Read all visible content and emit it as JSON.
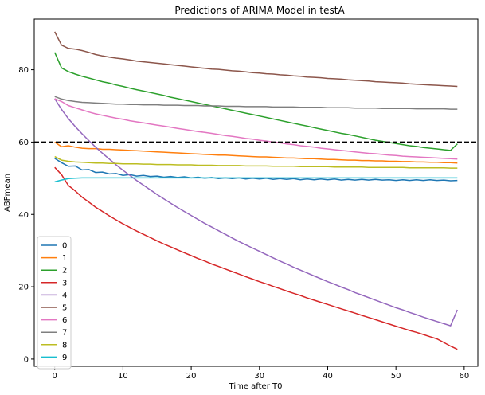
{
  "chart_data": {
    "type": "line",
    "title": "Predictions of ARIMA Model in testA",
    "xlabel": "Time after T0",
    "ylabel": "ABPmean",
    "xlim": [
      -3,
      62
    ],
    "ylim": [
      -2,
      94
    ],
    "xticks": [
      0,
      10,
      20,
      30,
      40,
      50,
      60
    ],
    "yticks": [
      0,
      20,
      40,
      60,
      80
    ],
    "grid": false,
    "legend_position": "lower left",
    "reference_line": {
      "y": 60,
      "style": "dashed",
      "color": "#000000"
    },
    "x": [
      0,
      1,
      2,
      3,
      4,
      5,
      6,
      7,
      8,
      9,
      10,
      11,
      12,
      13,
      14,
      15,
      16,
      17,
      18,
      19,
      20,
      21,
      22,
      23,
      24,
      25,
      26,
      27,
      28,
      29,
      30,
      31,
      32,
      33,
      34,
      35,
      36,
      37,
      38,
      39,
      40,
      41,
      42,
      43,
      44,
      45,
      46,
      47,
      48,
      49,
      50,
      51,
      52,
      53,
      54,
      55,
      56,
      57,
      58,
      59
    ],
    "series": [
      {
        "name": "0",
        "color": "#1f77b4",
        "values": [
          55.5,
          54.3,
          53.3,
          53.4,
          52.3,
          52.4,
          51.6,
          51.7,
          51.2,
          51.3,
          50.8,
          51.0,
          50.6,
          50.8,
          50.5,
          50.6,
          50.3,
          50.5,
          50.2,
          50.4,
          50.1,
          50.3,
          50.0,
          50.2,
          49.9,
          50.1,
          49.9,
          50.1,
          49.8,
          50.0,
          49.8,
          50.0,
          49.7,
          49.9,
          49.7,
          49.9,
          49.6,
          49.8,
          49.6,
          49.8,
          49.6,
          49.8,
          49.5,
          49.7,
          49.5,
          49.7,
          49.5,
          49.7,
          49.5,
          49.6,
          49.4,
          49.6,
          49.4,
          49.6,
          49.4,
          49.6,
          49.4,
          49.5,
          49.3,
          49.4
        ]
      },
      {
        "name": "1",
        "color": "#ff7f0e",
        "values": [
          60.0,
          58.7,
          59.0,
          58.6,
          58.3,
          58.2,
          58.2,
          58.0,
          58.0,
          57.9,
          57.8,
          57.7,
          57.6,
          57.5,
          57.4,
          57.3,
          57.2,
          57.1,
          57.0,
          56.9,
          56.8,
          56.7,
          56.6,
          56.5,
          56.4,
          56.4,
          56.3,
          56.2,
          56.1,
          56.0,
          55.9,
          55.9,
          55.8,
          55.7,
          55.6,
          55.6,
          55.5,
          55.4,
          55.4,
          55.3,
          55.2,
          55.2,
          55.1,
          55.0,
          55.0,
          54.9,
          54.9,
          54.8,
          54.8,
          54.7,
          54.7,
          54.6,
          54.6,
          54.5,
          54.5,
          54.4,
          54.4,
          54.3,
          54.3,
          54.2
        ]
      },
      {
        "name": "2",
        "color": "#2ca02c",
        "values": [
          84.8,
          80.5,
          79.5,
          78.8,
          78.2,
          77.7,
          77.2,
          76.7,
          76.3,
          75.8,
          75.4,
          74.9,
          74.5,
          74.1,
          73.7,
          73.3,
          72.9,
          72.4,
          72.0,
          71.6,
          71.2,
          70.8,
          70.4,
          70.0,
          69.6,
          69.2,
          68.8,
          68.4,
          68.0,
          67.6,
          67.2,
          66.8,
          66.4,
          66.0,
          65.6,
          65.2,
          64.8,
          64.4,
          64.0,
          63.6,
          63.2,
          62.8,
          62.4,
          62.1,
          61.7,
          61.3,
          60.9,
          60.5,
          60.2,
          59.9,
          59.6,
          59.3,
          59.0,
          58.8,
          58.5,
          58.3,
          58.1,
          57.9,
          57.7,
          59.5
        ]
      },
      {
        "name": "3",
        "color": "#d62728",
        "values": [
          53.0,
          51.0,
          48.0,
          46.5,
          44.8,
          43.4,
          42.0,
          40.8,
          39.6,
          38.5,
          37.4,
          36.4,
          35.4,
          34.5,
          33.6,
          32.7,
          31.8,
          31.0,
          30.2,
          29.4,
          28.6,
          27.8,
          27.1,
          26.3,
          25.6,
          24.9,
          24.2,
          23.5,
          22.8,
          22.1,
          21.4,
          20.8,
          20.1,
          19.5,
          18.8,
          18.2,
          17.6,
          16.9,
          16.3,
          15.7,
          15.1,
          14.5,
          13.9,
          13.3,
          12.7,
          12.1,
          11.5,
          10.9,
          10.3,
          9.7,
          9.1,
          8.5,
          7.9,
          7.4,
          6.8,
          6.2,
          5.6,
          4.6,
          3.6,
          2.7
        ]
      },
      {
        "name": "4",
        "color": "#9467bd",
        "values": [
          72.0,
          69.0,
          66.5,
          64.3,
          62.3,
          60.4,
          58.6,
          56.9,
          55.3,
          53.7,
          52.2,
          50.8,
          49.4,
          48.1,
          46.8,
          45.5,
          44.3,
          43.1,
          41.9,
          40.8,
          39.7,
          38.6,
          37.5,
          36.5,
          35.5,
          34.5,
          33.5,
          32.5,
          31.6,
          30.7,
          29.8,
          28.9,
          28.0,
          27.1,
          26.3,
          25.4,
          24.6,
          23.8,
          23.0,
          22.2,
          21.4,
          20.7,
          19.9,
          19.2,
          18.4,
          17.7,
          17.0,
          16.3,
          15.6,
          14.9,
          14.2,
          13.6,
          12.9,
          12.3,
          11.6,
          11.0,
          10.4,
          9.8,
          9.2,
          13.6
        ]
      },
      {
        "name": "5",
        "color": "#8c564b",
        "values": [
          90.5,
          86.8,
          85.9,
          85.7,
          85.3,
          84.8,
          84.2,
          83.8,
          83.5,
          83.2,
          83.0,
          82.7,
          82.4,
          82.2,
          82.0,
          81.8,
          81.6,
          81.4,
          81.2,
          81.0,
          80.8,
          80.6,
          80.4,
          80.2,
          80.1,
          79.9,
          79.7,
          79.6,
          79.4,
          79.2,
          79.1,
          78.9,
          78.8,
          78.6,
          78.5,
          78.3,
          78.2,
          78.0,
          77.9,
          77.8,
          77.6,
          77.5,
          77.4,
          77.2,
          77.1,
          77.0,
          76.9,
          76.7,
          76.6,
          76.5,
          76.4,
          76.3,
          76.1,
          76.0,
          75.9,
          75.8,
          75.7,
          75.6,
          75.5,
          75.4
        ]
      },
      {
        "name": "6",
        "color": "#e377c2",
        "values": [
          72.0,
          71.2,
          70.1,
          69.5,
          68.9,
          68.3,
          67.8,
          67.4,
          67.0,
          66.6,
          66.3,
          65.9,
          65.6,
          65.3,
          65.0,
          64.7,
          64.4,
          64.1,
          63.8,
          63.5,
          63.2,
          62.9,
          62.7,
          62.4,
          62.1,
          61.8,
          61.6,
          61.3,
          61.0,
          60.8,
          60.5,
          60.3,
          60.0,
          59.8,
          59.5,
          59.3,
          59.0,
          58.8,
          58.6,
          58.3,
          58.1,
          57.9,
          57.7,
          57.5,
          57.3,
          57.1,
          56.9,
          56.8,
          56.6,
          56.4,
          56.3,
          56.1,
          56.0,
          55.9,
          55.8,
          55.7,
          55.6,
          55.5,
          55.4,
          55.3
        ]
      },
      {
        "name": "7",
        "color": "#7f7f7f",
        "values": [
          72.6,
          71.9,
          71.5,
          71.2,
          71.0,
          70.9,
          70.8,
          70.7,
          70.6,
          70.5,
          70.5,
          70.4,
          70.4,
          70.3,
          70.3,
          70.3,
          70.2,
          70.2,
          70.2,
          70.1,
          70.1,
          70.1,
          70.0,
          70.0,
          70.0,
          69.9,
          69.9,
          69.9,
          69.8,
          69.8,
          69.8,
          69.8,
          69.7,
          69.7,
          69.7,
          69.7,
          69.6,
          69.6,
          69.6,
          69.6,
          69.5,
          69.5,
          69.5,
          69.5,
          69.4,
          69.4,
          69.4,
          69.4,
          69.3,
          69.3,
          69.3,
          69.3,
          69.3,
          69.2,
          69.2,
          69.2,
          69.2,
          69.2,
          69.1,
          69.1
        ]
      },
      {
        "name": "8",
        "color": "#bcbd22",
        "values": [
          56.0,
          55.0,
          54.7,
          54.5,
          54.4,
          54.3,
          54.2,
          54.2,
          54.1,
          54.1,
          54.0,
          54.0,
          54.0,
          53.9,
          53.9,
          53.8,
          53.8,
          53.8,
          53.7,
          53.7,
          53.7,
          53.6,
          53.6,
          53.6,
          53.5,
          53.5,
          53.5,
          53.5,
          53.4,
          53.4,
          53.4,
          53.4,
          53.3,
          53.3,
          53.3,
          53.3,
          53.2,
          53.2,
          53.2,
          53.2,
          53.2,
          53.1,
          53.1,
          53.1,
          53.1,
          53.1,
          53.0,
          53.0,
          53.0,
          53.0,
          53.0,
          53.0,
          52.9,
          52.9,
          52.9,
          52.9,
          52.9,
          52.9,
          52.8,
          52.8
        ]
      },
      {
        "name": "9",
        "color": "#17becf",
        "values": [
          49.0,
          49.5,
          49.9,
          50.0,
          50.1,
          50.1,
          50.1,
          50.1,
          50.1,
          50.1,
          50.1,
          50.1,
          50.1,
          50.1,
          50.1,
          50.1,
          50.1,
          50.1,
          50.1,
          50.1,
          50.1,
          50.1,
          50.1,
          50.1,
          50.1,
          50.1,
          50.1,
          50.1,
          50.1,
          50.1,
          50.1,
          50.1,
          50.1,
          50.1,
          50.1,
          50.1,
          50.1,
          50.1,
          50.1,
          50.1,
          50.1,
          50.1,
          50.1,
          50.1,
          50.1,
          50.1,
          50.1,
          50.1,
          50.1,
          50.1,
          50.1,
          50.1,
          50.1,
          50.1,
          50.1,
          50.1,
          50.1,
          50.1,
          50.1,
          50.1
        ]
      }
    ]
  }
}
